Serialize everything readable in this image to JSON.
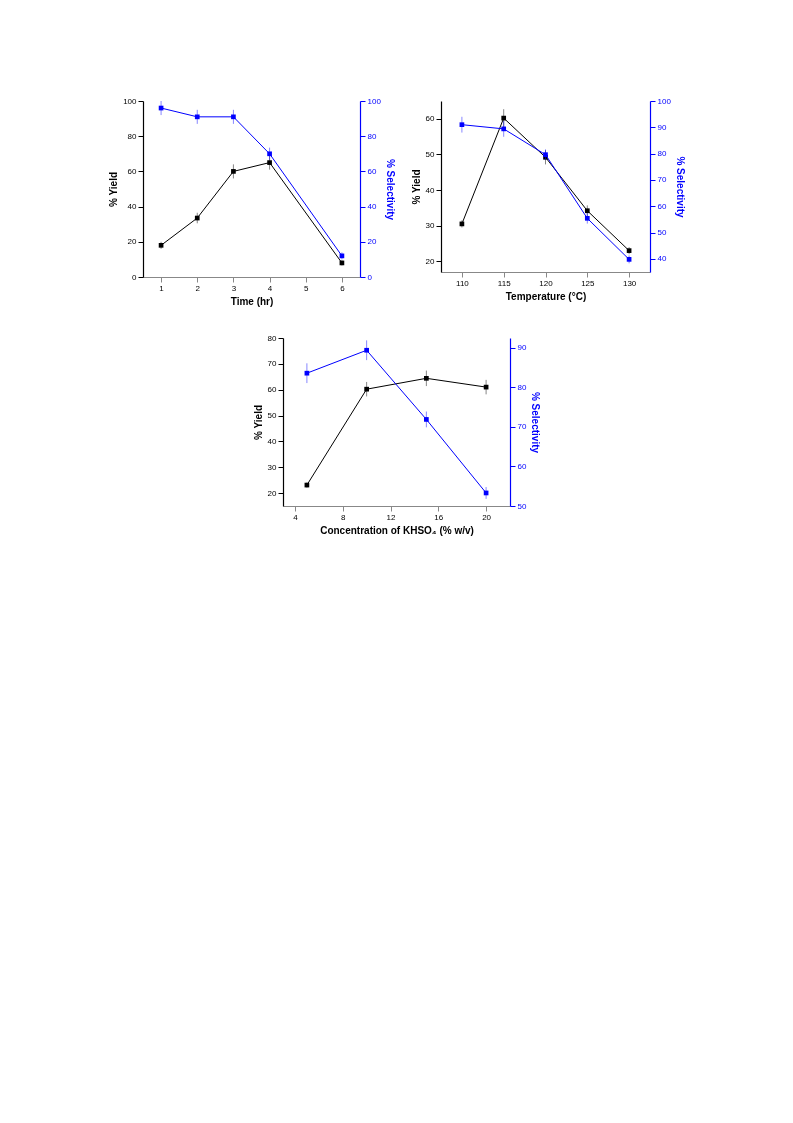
{
  "chart_data": [
    {
      "type": "line",
      "xlabel": "Time (hr)",
      "ylabel": "% Yield",
      "y2label": "% Selectivity",
      "x": [
        1,
        2,
        3,
        4,
        6
      ],
      "xlim": [
        0.5,
        6.5
      ],
      "xticks": [
        1,
        2,
        3,
        4,
        5,
        6
      ],
      "ylim": [
        0,
        100
      ],
      "yticks": [
        0,
        20,
        40,
        60,
        80,
        100
      ],
      "y2lim": [
        0,
        100
      ],
      "y2ticks": [
        0,
        20,
        40,
        60,
        80,
        100
      ],
      "marker": "square",
      "grid": false,
      "series": [
        {
          "color": "#000000",
          "values": [
            18,
            33.5,
            60,
            65,
            8
          ],
          "errors": [
            2,
            3,
            4,
            4,
            1.5
          ]
        },
        {
          "color": "#0000ff",
          "axis": "y2",
          "values": [
            96,
            91,
            91,
            70,
            12
          ],
          "errors": [
            4,
            4,
            4,
            3.5,
            2
          ]
        }
      ]
    },
    {
      "type": "line",
      "xlabel": "Temperature (°C)",
      "ylabel": "% Yield",
      "y2label": "% Selectivity",
      "x": [
        110,
        115,
        120,
        125,
        130
      ],
      "xlim": [
        107.5,
        132.5
      ],
      "xticks": [
        110,
        115,
        120,
        125,
        130
      ],
      "ylim": [
        17,
        65
      ],
      "yticks": [
        20,
        30,
        40,
        50,
        60
      ],
      "y2lim": [
        35,
        100
      ],
      "y2ticks": [
        40,
        50,
        60,
        70,
        80,
        90,
        100
      ],
      "marker": "square",
      "grid": false,
      "series": [
        {
          "color": "#000000",
          "values": [
            30.5,
            60.2,
            49.2,
            34.2,
            23
          ],
          "errors": [
            1,
            2.5,
            2,
            1.5,
            1
          ]
        },
        {
          "color": "#0000ff",
          "axis": "y2",
          "values": [
            91,
            89.4,
            79.6,
            55.4,
            39.8
          ],
          "errors": [
            3,
            3,
            2,
            2,
            1.5
          ]
        }
      ]
    },
    {
      "type": "line",
      "xlabel": "Concentration of KHSO₄ (% w/v)",
      "ylabel": "% Yield",
      "y2label": "% Selectivity",
      "x": [
        5,
        10,
        15,
        20
      ],
      "xlim": [
        3,
        22
      ],
      "xticks": [
        4,
        8,
        12,
        16,
        20
      ],
      "ylim": [
        15,
        80
      ],
      "yticks": [
        20,
        30,
        40,
        50,
        60,
        70,
        80
      ],
      "y2lim": [
        50,
        92.5
      ],
      "y2ticks": [
        50,
        60,
        70,
        80,
        90
      ],
      "marker": "square",
      "grid": false,
      "series": [
        {
          "color": "#000000",
          "values": [
            23.1,
            60.2,
            64.4,
            61
          ],
          "errors": [
            1,
            2.8,
            3,
            2.8
          ]
        },
        {
          "color": "#0000ff",
          "axis": "y2",
          "values": [
            83.6,
            89.4,
            71.9,
            53.3
          ],
          "errors": [
            2.5,
            2.5,
            2,
            1.5
          ]
        }
      ]
    }
  ]
}
